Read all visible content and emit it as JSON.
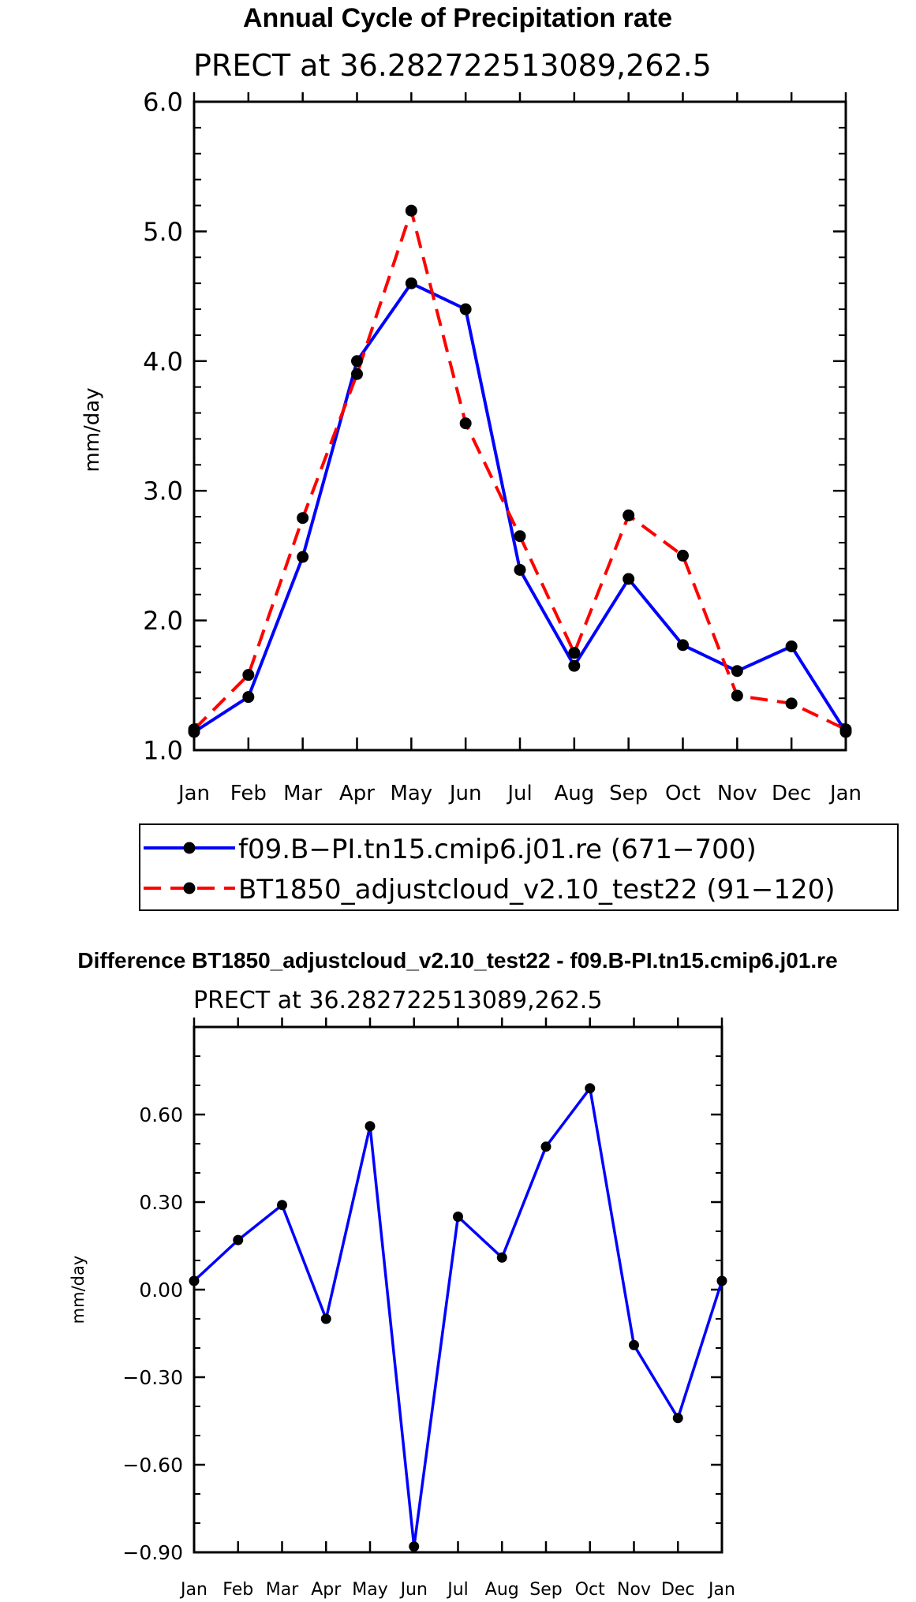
{
  "colors": {
    "series_1": "#0000ff",
    "series_2": "#ff0000",
    "marker": "#000000"
  },
  "chart_data": [
    {
      "type": "line",
      "title": "Annual Cycle of Precipitation rate",
      "subtitle": "PRECT at 36.282722513089,262.5",
      "xlabel": "",
      "ylabel": "mm/day",
      "categories": [
        "Jan",
        "Feb",
        "Mar",
        "Apr",
        "May",
        "Jun",
        "Jul",
        "Aug",
        "Sep",
        "Oct",
        "Nov",
        "Dec",
        "Jan"
      ],
      "ylim": [
        1.0,
        6.0
      ],
      "yticks": [
        1.0,
        2.0,
        3.0,
        4.0,
        5.0,
        6.0
      ],
      "ytick_labels": [
        "1.0",
        "2.0",
        "3.0",
        "4.0",
        "5.0",
        "6.0"
      ],
      "series": [
        {
          "name": "f09.B−PI.tn15.cmip6.j01.re (671−700)",
          "style": "solid",
          "color": "#0000ff",
          "values": [
            1.14,
            1.41,
            2.49,
            4.0,
            4.6,
            4.4,
            2.39,
            1.65,
            2.32,
            1.81,
            1.61,
            1.8,
            1.14
          ]
        },
        {
          "name": "BT1850_adjustcloud_v2.10_test22 (91−120)",
          "style": "dashed",
          "color": "#ff0000",
          "values": [
            1.16,
            1.58,
            2.79,
            3.9,
            5.16,
            3.52,
            2.65,
            1.75,
            2.81,
            2.5,
            1.42,
            1.36,
            1.16
          ]
        }
      ],
      "legend": "below"
    },
    {
      "type": "line",
      "title": "Difference BT1850_adjustcloud_v2.10_test22 - f09.B-PI.tn15.cmip6.j01.re",
      "subtitle": "PRECT at 36.282722513089,262.5",
      "xlabel": "",
      "ylabel": "mm/day",
      "categories": [
        "Jan",
        "Feb",
        "Mar",
        "Apr",
        "May",
        "Jun",
        "Jul",
        "Aug",
        "Sep",
        "Oct",
        "Nov",
        "Dec",
        "Jan"
      ],
      "ylim": [
        -0.9,
        0.9
      ],
      "yticks": [
        -0.9,
        -0.6,
        -0.3,
        0.0,
        0.3,
        0.6
      ],
      "ytick_labels": [
        "−0.90",
        "−0.60",
        "−0.30",
        "0.00",
        "0.30",
        "0.60"
      ],
      "series": [
        {
          "name": "Difference",
          "style": "solid",
          "color": "#0000ff",
          "values": [
            0.03,
            0.17,
            0.29,
            -0.1,
            0.56,
            -0.88,
            0.25,
            0.11,
            0.49,
            0.69,
            -0.19,
            -0.44,
            0.03
          ]
        }
      ]
    }
  ]
}
